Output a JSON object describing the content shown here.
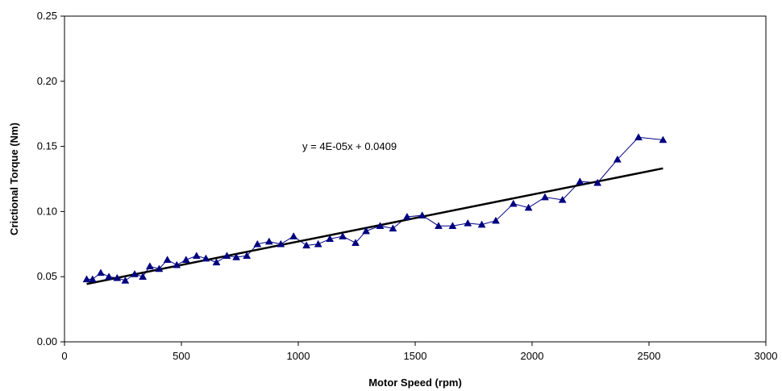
{
  "chart_data": {
    "type": "scatter",
    "xlabel": "Motor Speed (rpm)",
    "ylabel": "Crictional Torque (Nm)",
    "xlim": [
      0,
      3000
    ],
    "ylim": [
      0,
      0.25
    ],
    "x_ticks": [
      0,
      500,
      1000,
      1500,
      2000,
      2500,
      3000
    ],
    "x_tick_labels": [
      "0",
      "500",
      "1000",
      "1500",
      "2000",
      "2500",
      "3000"
    ],
    "y_ticks": [
      0,
      0.05,
      0.1,
      0.15,
      0.2,
      0.25
    ],
    "y_tick_labels": [
      "0.00",
      "0.05",
      "0.10",
      "0.15",
      "0.20",
      "0.25"
    ],
    "grid": false,
    "legend": "none",
    "annotation": "y = 4E-05x + 0.0409",
    "series": [
      {
        "marker": "triangle",
        "color": "#000080",
        "connected": true,
        "x": [
          95,
          120,
          155,
          190,
          225,
          260,
          300,
          335,
          365,
          405,
          440,
          480,
          520,
          565,
          605,
          650,
          695,
          735,
          780,
          825,
          875,
          925,
          980,
          1035,
          1085,
          1135,
          1190,
          1245,
          1290,
          1350,
          1405,
          1465,
          1530,
          1600,
          1660,
          1725,
          1785,
          1845,
          1920,
          1985,
          2055,
          2130,
          2205,
          2280,
          2365,
          2455,
          2560
        ],
        "y": [
          0.048,
          0.048,
          0.053,
          0.05,
          0.049,
          0.047,
          0.052,
          0.05,
          0.058,
          0.056,
          0.063,
          0.059,
          0.063,
          0.066,
          0.064,
          0.061,
          0.066,
          0.065,
          0.066,
          0.075,
          0.077,
          0.075,
          0.081,
          0.074,
          0.075,
          0.079,
          0.081,
          0.076,
          0.085,
          0.089,
          0.087,
          0.096,
          0.097,
          0.089,
          0.089,
          0.091,
          0.09,
          0.093,
          0.106,
          0.103,
          0.111,
          0.109,
          0.123,
          0.122,
          0.14,
          0.157,
          0.155
        ]
      }
    ],
    "trendline": {
      "slope": 3.6e-05,
      "intercept": 0.041,
      "x_range": [
        95,
        2560
      ],
      "color": "#000000"
    }
  }
}
